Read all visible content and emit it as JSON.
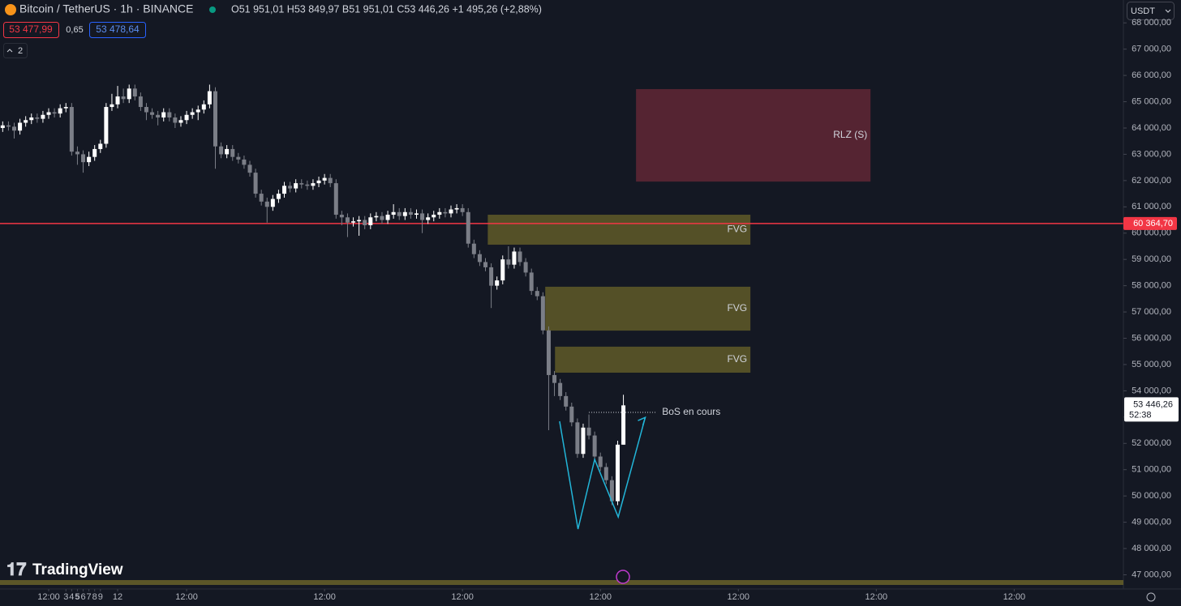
{
  "header": {
    "ohlc_text": "O51 951,01 H53 849,97 B51 951,01 C53 446,26 +1 495,26 (+2,88%)",
    "bid": "53 477,99",
    "spread": "0,65",
    "ask": "53 478,64",
    "indicators_count": "2",
    "currency": "USDT",
    "brand": "TradingView",
    "countdown": "52:38"
  },
  "chart_data": {
    "type": "candlestick",
    "title": "Bitcoin / TetherUS · 1h · BINANCE",
    "up_color": "#ffffff",
    "down_color": "#7b7e87",
    "x": [
      -8,
      -7,
      -6,
      -5,
      -4,
      -3,
      -2,
      -1,
      0,
      1,
      2,
      3,
      4,
      5,
      6,
      7,
      8,
      9,
      10,
      11,
      12,
      13,
      14,
      15,
      16,
      17,
      18,
      19,
      20,
      21,
      22,
      23,
      24,
      25,
      26,
      27,
      28,
      29,
      30,
      31,
      32,
      33,
      34,
      35,
      36,
      37,
      38,
      39,
      40,
      41,
      42,
      43,
      44,
      45,
      46,
      47,
      48,
      49,
      50,
      51,
      52,
      53,
      54,
      55,
      56,
      57,
      58,
      59,
      60,
      61,
      62,
      63,
      64,
      65,
      66,
      67,
      68,
      69,
      70,
      71,
      72,
      73,
      74,
      75,
      76,
      77,
      78,
      79,
      80,
      81,
      82,
      83,
      84,
      85,
      86,
      87,
      88,
      89,
      90,
      91,
      92,
      93,
      94,
      95,
      96,
      97,
      98,
      99,
      100
    ],
    "ohlc": [
      [
        64000,
        64250,
        63850,
        64100
      ],
      [
        64100,
        64250,
        63900,
        64050
      ],
      [
        64050,
        64200,
        63600,
        63900
      ],
      [
        63900,
        64350,
        63750,
        64200
      ],
      [
        64200,
        64450,
        64050,
        64300
      ],
      [
        64300,
        64550,
        64150,
        64400
      ],
      [
        64400,
        64550,
        64200,
        64350
      ],
      [
        64350,
        64650,
        64200,
        64500
      ],
      [
        64500,
        64750,
        64350,
        64600
      ],
      [
        64600,
        64750,
        64400,
        64550
      ],
      [
        64550,
        64900,
        64400,
        64750
      ],
      [
        64750,
        64950,
        64600,
        64800
      ],
      [
        64800,
        64950,
        62950,
        63100
      ],
      [
        63100,
        63300,
        62600,
        63000
      ],
      [
        63000,
        63150,
        62300,
        62700
      ],
      [
        62700,
        63100,
        62550,
        62900
      ],
      [
        62900,
        63350,
        62750,
        63200
      ],
      [
        63200,
        63550,
        63050,
        63400
      ],
      [
        63400,
        64950,
        63250,
        64800
      ],
      [
        64800,
        65300,
        64650,
        64900
      ],
      [
        64900,
        65600,
        64750,
        65200
      ],
      [
        65200,
        65500,
        64950,
        65100
      ],
      [
        65100,
        65650,
        64950,
        65500
      ],
      [
        65500,
        65650,
        65050,
        65200
      ],
      [
        65200,
        65350,
        64650,
        64800
      ],
      [
        64800,
        64950,
        64300,
        64600
      ],
      [
        64600,
        64750,
        64350,
        64500
      ],
      [
        64500,
        64650,
        64100,
        64400
      ],
      [
        64400,
        64750,
        64250,
        64600
      ],
      [
        64600,
        64750,
        64250,
        64400
      ],
      [
        64400,
        64550,
        64000,
        64200
      ],
      [
        64200,
        64450,
        64050,
        64300
      ],
      [
        64300,
        64650,
        64150,
        64500
      ],
      [
        64500,
        64750,
        64350,
        64600
      ],
      [
        64600,
        64850,
        64300,
        64700
      ],
      [
        64700,
        65050,
        64550,
        64900
      ],
      [
        64900,
        65650,
        64750,
        65400
      ],
      [
        65400,
        65550,
        62450,
        63300
      ],
      [
        63300,
        63450,
        62850,
        63000
      ],
      [
        63000,
        63350,
        62850,
        63200
      ],
      [
        63200,
        63350,
        62750,
        62900
      ],
      [
        62900,
        63050,
        62650,
        62800
      ],
      [
        62800,
        62950,
        62450,
        62600
      ],
      [
        62600,
        62750,
        62150,
        62300
      ],
      [
        62300,
        62450,
        61350,
        61500
      ],
      [
        61500,
        61650,
        61050,
        61200
      ],
      [
        61200,
        61350,
        60400,
        61000
      ],
      [
        61000,
        61450,
        60850,
        61300
      ],
      [
        61300,
        61650,
        61150,
        61500
      ],
      [
        61500,
        61950,
        61350,
        61800
      ],
      [
        61800,
        61950,
        61550,
        61700
      ],
      [
        61700,
        62050,
        61550,
        61900
      ],
      [
        61900,
        62050,
        61700,
        61850
      ],
      [
        61850,
        62000,
        61650,
        61800
      ],
      [
        61800,
        62050,
        61650,
        61900
      ],
      [
        61900,
        62150,
        61750,
        62000
      ],
      [
        62000,
        62250,
        61850,
        62100
      ],
      [
        62100,
        62250,
        61750,
        61900
      ],
      [
        61900,
        62050,
        60550,
        60700
      ],
      [
        60700,
        60850,
        60300,
        60600
      ],
      [
        60600,
        60750,
        59850,
        60400
      ],
      [
        60400,
        60600,
        60250,
        60450
      ],
      [
        60450,
        60650,
        59900,
        60500
      ],
      [
        60500,
        60650,
        60150,
        60300
      ],
      [
        60300,
        60750,
        60150,
        60600
      ],
      [
        60600,
        60800,
        60450,
        60650
      ],
      [
        60650,
        60800,
        60350,
        60500
      ],
      [
        60500,
        60850,
        60350,
        60700
      ],
      [
        60700,
        61100,
        60550,
        60800
      ],
      [
        60800,
        60950,
        60500,
        60650
      ],
      [
        60650,
        60950,
        60500,
        60800
      ],
      [
        60800,
        60950,
        60550,
        60700
      ],
      [
        60700,
        60900,
        60550,
        60750
      ],
      [
        60750,
        60900,
        60000,
        60500
      ],
      [
        60500,
        60750,
        60350,
        60600
      ],
      [
        60600,
        60850,
        60450,
        60700
      ],
      [
        60700,
        60950,
        60550,
        60800
      ],
      [
        60800,
        60950,
        60600,
        60750
      ],
      [
        60750,
        61050,
        60600,
        60900
      ],
      [
        60900,
        61100,
        60750,
        60950
      ],
      [
        60950,
        61100,
        60650,
        60800
      ],
      [
        60800,
        60950,
        59450,
        59600
      ],
      [
        59600,
        59750,
        59050,
        59200
      ],
      [
        59200,
        59350,
        58750,
        58900
      ],
      [
        58900,
        59050,
        58550,
        58700
      ],
      [
        58700,
        58850,
        57150,
        58000
      ],
      [
        58000,
        58350,
        57850,
        58200
      ],
      [
        58200,
        59150,
        58050,
        59000
      ],
      [
        59000,
        59500,
        58650,
        58800
      ],
      [
        58800,
        59450,
        58650,
        59300
      ],
      [
        59300,
        59450,
        58750,
        58900
      ],
      [
        58900,
        59050,
        58350,
        58500
      ],
      [
        58500,
        58650,
        57650,
        57800
      ],
      [
        57800,
        57950,
        57450,
        57600
      ],
      [
        57600,
        57750,
        56150,
        56300
      ],
      [
        56300,
        56450,
        52500,
        54600
      ],
      [
        54600,
        54750,
        53800,
        54300
      ],
      [
        54300,
        54450,
        53650,
        53800
      ],
      [
        53800,
        53950,
        53250,
        53400
      ],
      [
        53400,
        53550,
        52650,
        52800
      ],
      [
        52800,
        52950,
        51450,
        51600
      ],
      [
        51600,
        52750,
        51450,
        52600
      ],
      [
        52600,
        53100,
        52150,
        52300
      ],
      [
        52300,
        52450,
        51350,
        51500
      ],
      [
        51500,
        51650,
        50950,
        51100
      ],
      [
        51100,
        51250,
        50450,
        50600
      ],
      [
        50600,
        50750,
        49650,
        49800
      ],
      [
        49800,
        52100,
        49650,
        51951.01
      ],
      [
        51951.01,
        53849.97,
        51951.01,
        53446.26
      ]
    ],
    "last_price_label": "53 446,26",
    "xlim": [
      -8.47,
      187
    ],
    "xticks": [
      {
        "value": 0,
        "label": "12:00"
      },
      12,
      {
        "value": 24,
        "label": "12:00"
      },
      3,
      {
        "value": 48,
        "label": "12:00"
      },
      4,
      {
        "value": 72,
        "label": "12:00"
      },
      5,
      {
        "value": 96,
        "label": "12:00"
      },
      6,
      {
        "value": 120,
        "label": "12:00"
      },
      7,
      {
        "value": 144,
        "label": "12:00"
      },
      8,
      {
        "value": 168,
        "label": "12:00"
      },
      9
    ],
    "ylim": [
      46460,
      68870
    ],
    "yticks": [
      {
        "value": 47000,
        "label": "47 000,00"
      },
      {
        "value": 48000,
        "label": "48 000,00"
      },
      {
        "value": 49000,
        "label": "49 000,00"
      },
      {
        "value": 50000,
        "label": "50 000,00"
      },
      {
        "value": 51000,
        "label": "51 000,00"
      },
      {
        "value": 52000,
        "label": "52 000,00"
      },
      {
        "value": 53000,
        "label": "53 000,00"
      },
      {
        "value": 54000,
        "label": "54 000,00"
      },
      {
        "value": 55000,
        "label": "55 000,00"
      },
      {
        "value": 56000,
        "label": "56 000,00"
      },
      {
        "value": 57000,
        "label": "57 000,00"
      },
      {
        "value": 58000,
        "label": "58 000,00"
      },
      {
        "value": 59000,
        "label": "59 000,00"
      },
      {
        "value": 60000,
        "label": "60 000,00"
      },
      {
        "value": 61000,
        "label": "61 000,00"
      },
      {
        "value": 62000,
        "label": "62 000,00"
      },
      {
        "value": 63000,
        "label": "63 000,00"
      },
      {
        "value": 64000,
        "label": "64 000,00"
      },
      {
        "value": 65000,
        "label": "65 000,00"
      },
      {
        "value": 66000,
        "label": "66 000,00"
      },
      {
        "value": 67000,
        "label": "67 000,00"
      },
      {
        "value": 68000,
        "label": "68 000,00"
      }
    ],
    "price_line": {
      "value": 60364.7,
      "label": "60 364,70",
      "color": "#f23645"
    },
    "zones": [
      {
        "label": "RLZ (S)",
        "top": 65480,
        "bottom": 61960,
        "x0": 102.2,
        "x1": 143,
        "color": "#5c2634"
      },
      {
        "label": "FVG",
        "top": 60700,
        "bottom": 59560,
        "x0": 76.4,
        "x1": 122.1,
        "color": "#5b5628"
      },
      {
        "label": "FVG",
        "top": 57960,
        "bottom": 56290,
        "x0": 86.4,
        "x1": 122.1,
        "color": "#5b5628"
      },
      {
        "label": "FVG",
        "top": 55680,
        "bottom": 54690,
        "x0": 88.1,
        "x1": 122.1,
        "color": "#5b5628"
      }
    ],
    "bos": {
      "label": "BoS en cours",
      "value": 53180,
      "x0": 94,
      "x1": 105.6
    },
    "pattern": {
      "color": "#22b5d8",
      "x": [
        88.9,
        92.1,
        95,
        99.1,
        103.8
      ],
      "y": [
        52840,
        48740,
        51390,
        49200,
        52990
      ]
    }
  }
}
